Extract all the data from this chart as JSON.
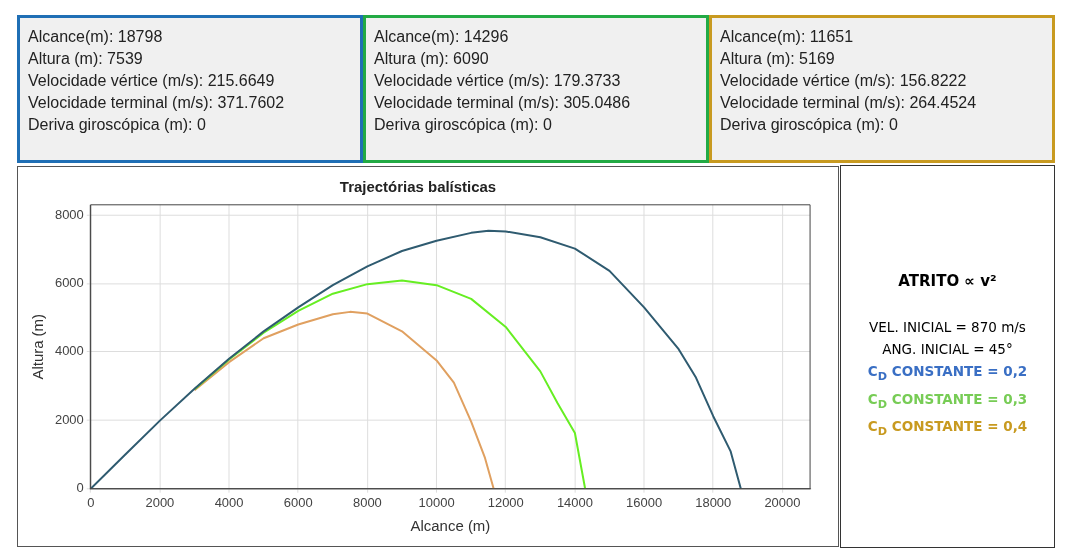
{
  "chart_data": {
    "type": "line",
    "title": "Trajectórias balísticas",
    "xlabel": "Alcance (m)",
    "ylabel": "Altura (m)",
    "xlim": [
      0,
      20800
    ],
    "ylim": [
      0,
      8300
    ],
    "xticks": [
      0,
      2000,
      4000,
      6000,
      8000,
      10000,
      12000,
      14000,
      16000,
      18000,
      20000
    ],
    "yticks": [
      0,
      2000,
      4000,
      6000,
      8000
    ],
    "grid": true,
    "legend": false,
    "marker": "none",
    "line_style": "solid",
    "series": [
      {
        "color": "#2f5b70",
        "x": [
          0,
          1000,
          2000,
          3000,
          4000,
          5000,
          6000,
          7000,
          8000,
          9000,
          10000,
          11000,
          11500,
          12000,
          13000,
          14000,
          15000,
          16000,
          17000,
          17500,
          18000,
          18500,
          18798
        ],
        "values": [
          0,
          1000,
          1990,
          2920,
          3800,
          4600,
          5300,
          5950,
          6500,
          6950,
          7250,
          7480,
          7540,
          7520,
          7350,
          7020,
          6370,
          5300,
          4080,
          3250,
          2120,
          1100,
          0
        ]
      },
      {
        "color": "#66ee22",
        "x": [
          3000,
          4000,
          5000,
          6000,
          7000,
          8000,
          9000,
          10000,
          11000,
          12000,
          13000,
          13500,
          14000,
          14296
        ],
        "values": [
          2910,
          3780,
          4560,
          5200,
          5700,
          5980,
          6090,
          5950,
          5550,
          4730,
          3430,
          2500,
          1630,
          0
        ]
      },
      {
        "color": "#e0a060",
        "x": [
          3000,
          4000,
          5000,
          6000,
          7000,
          7500,
          8000,
          9000,
          10000,
          10500,
          11000,
          11400,
          11651
        ],
        "values": [
          2880,
          3700,
          4400,
          4800,
          5100,
          5170,
          5120,
          4600,
          3750,
          3100,
          1960,
          900,
          0
        ]
      }
    ],
    "annotations": [
      "Alcance(m):  18798",
      "Altura (m): 7539",
      "Velocidade vértice (m/s): 215.6649",
      "Velocidade terminal (m/s): 371.7602",
      "Deriva giroscópica (m):  0",
      "Alcance(m):  14296",
      "Altura (m): 6090",
      "Velocidade vértice (m/s): 179.3733",
      "Velocidade terminal (m/s): 305.0486",
      "Deriva giroscópica (m):  0",
      "Alcance(m):  11651",
      "Altura (m): 5169",
      "Velocidade vértice (m/s): 156.8222",
      "Velocidade terminal (m/s): 264.4524",
      "Deriva giroscópica (m):  0",
      "ATRITO ∝ v²",
      "VEL. INICIAL = 870 m/s",
      "ANG. INICIAL = 45°",
      "C$_{D}$ CONSTANTE = 0,2",
      "C$_{D}$ CONSTANTE = 0,3",
      "C$_{D}$ CONSTANTE = 0,4"
    ]
  }
}
